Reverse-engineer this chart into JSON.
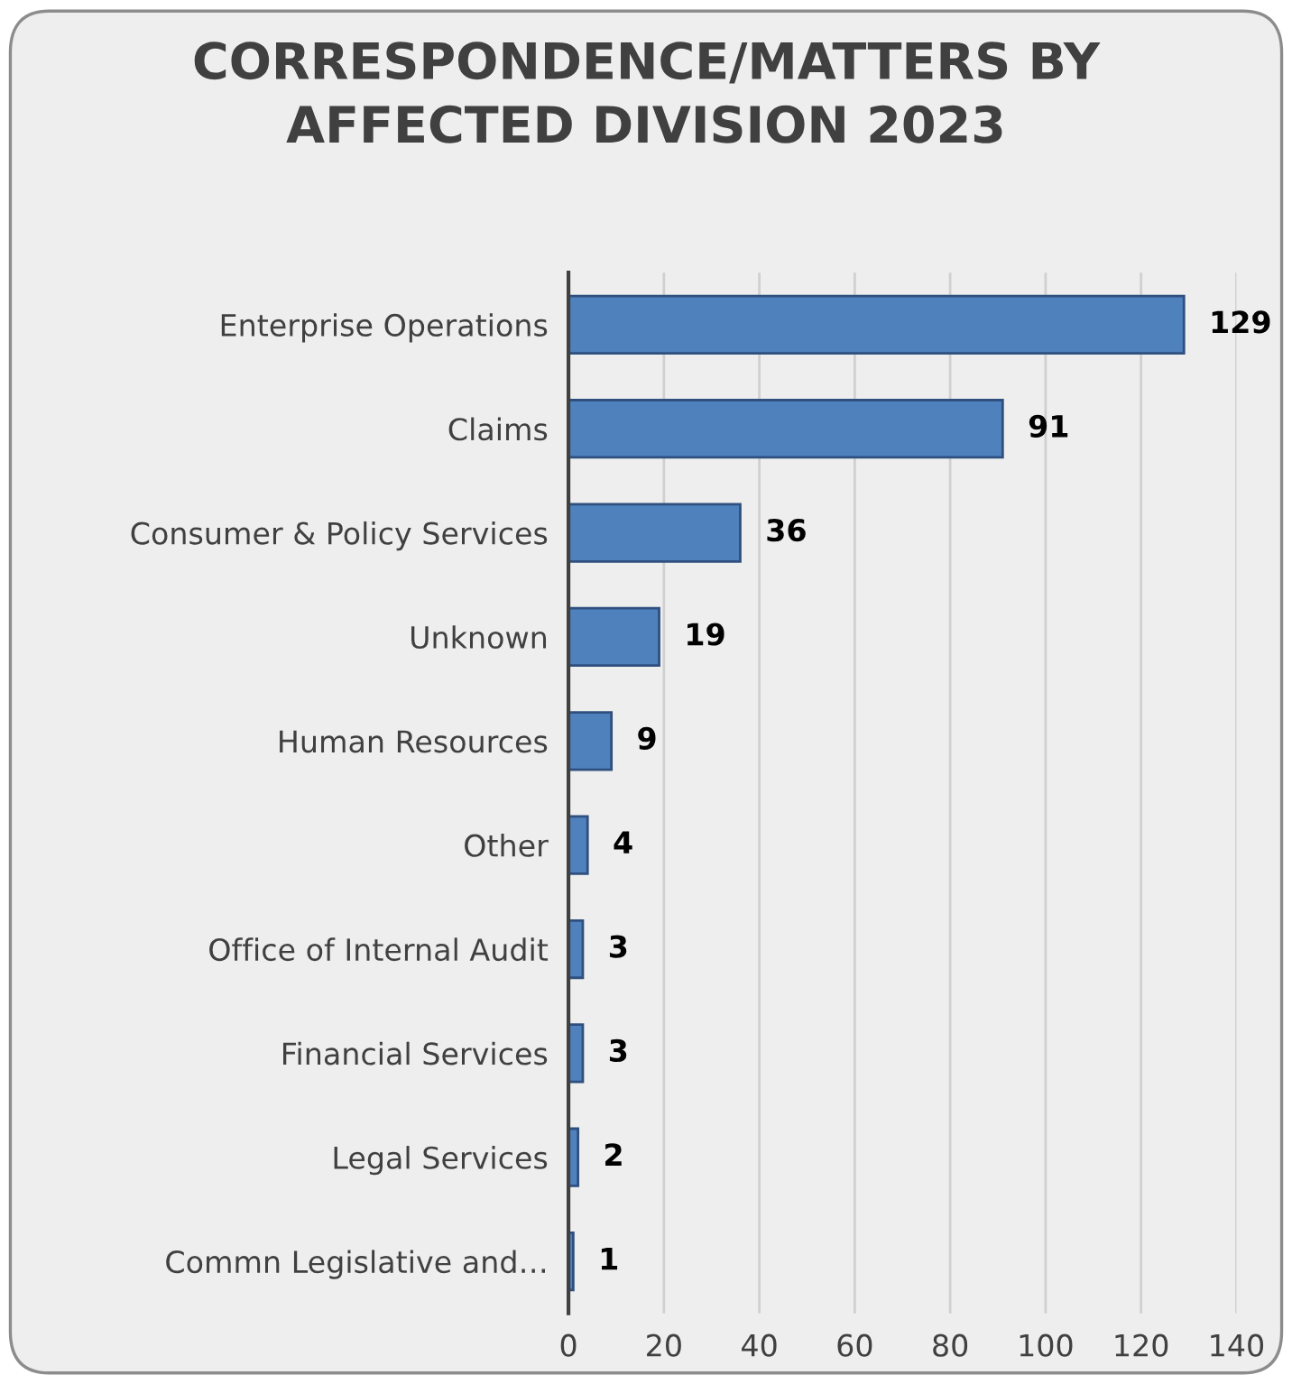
{
  "chart_data": {
    "type": "bar",
    "orientation": "horizontal",
    "title": "CORRESPONDENCE/MATTERS BY\nAFFECTED DIVISION 2023",
    "categories": [
      "Enterprise Operations",
      "Claims",
      "Consumer & Policy Services",
      "Unknown",
      "Human Resources",
      "Other",
      "Office of Internal Audit",
      "Financial Services",
      "Legal Services",
      "Commn Legislative and…"
    ],
    "values": [
      129,
      91,
      36,
      19,
      9,
      4,
      3,
      3,
      2,
      1
    ],
    "color": "#4f81bd",
    "xlim": [
      0,
      140
    ],
    "xticks": [
      0,
      20,
      40,
      60,
      80,
      100,
      120,
      140
    ],
    "grid": "x",
    "data_labels": true,
    "legend": false
  }
}
